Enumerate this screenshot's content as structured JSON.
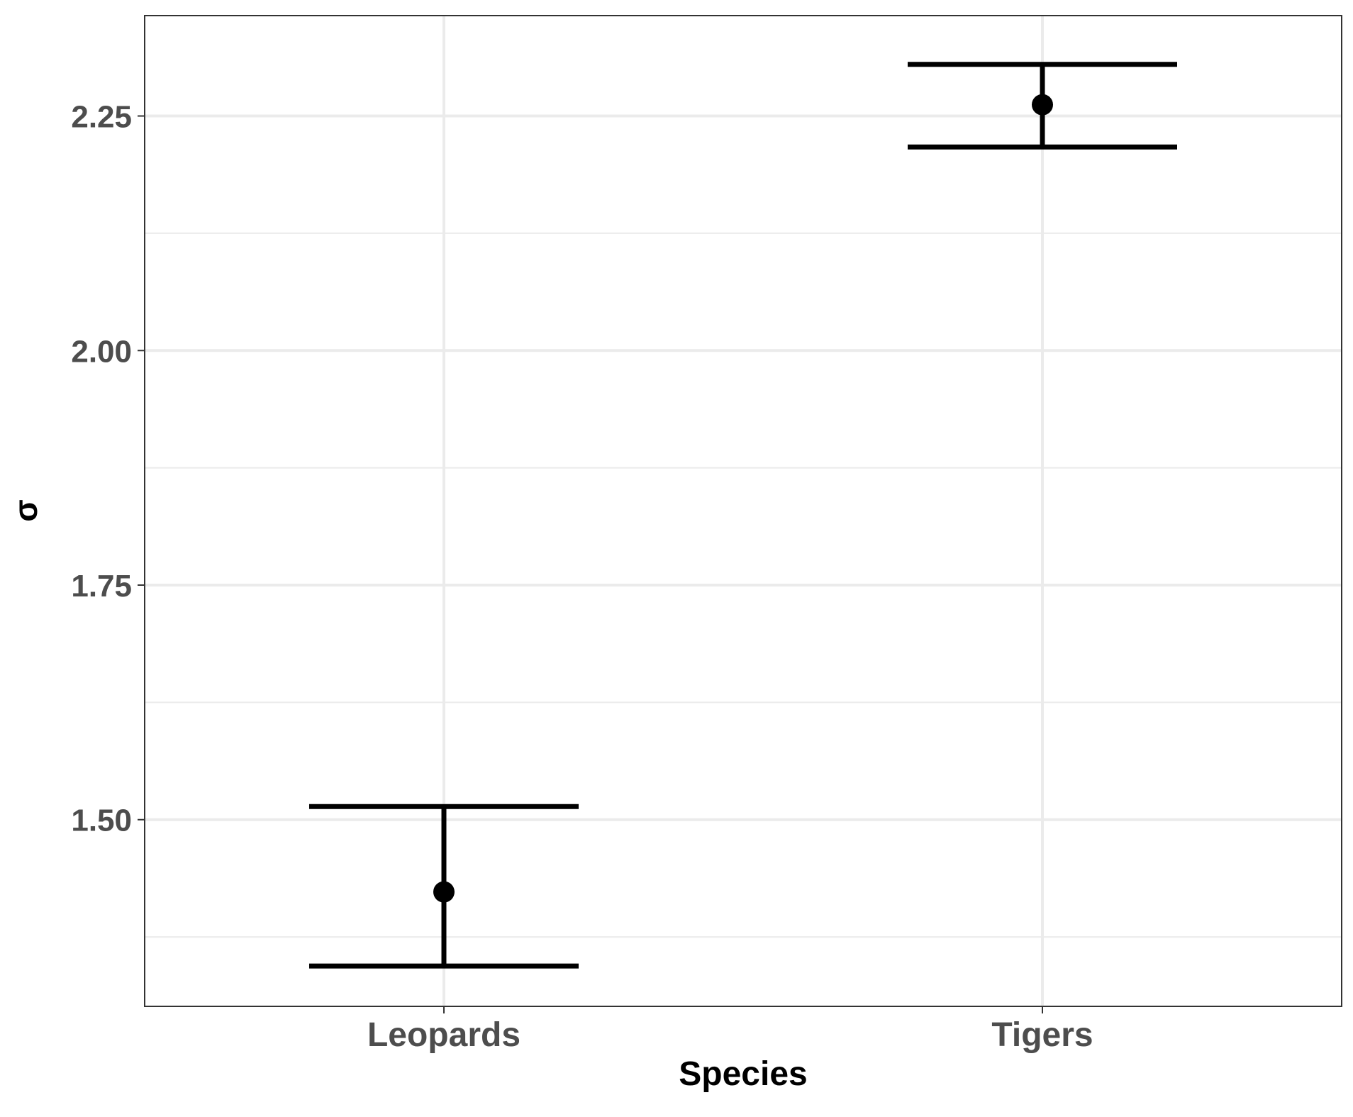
{
  "chart_data": {
    "type": "scatter",
    "title": "",
    "xlabel": "Species",
    "ylabel": "σ",
    "categories": [
      "Leopards",
      "Tigers"
    ],
    "points": [
      {
        "category": "Leopards",
        "estimate": 1.423,
        "lower": 1.344,
        "upper": 1.514
      },
      {
        "category": "Tigers",
        "estimate": 2.262,
        "lower": 2.217,
        "upper": 2.305
      }
    ],
    "y_ticks": [
      "1.50",
      "1.75",
      "2.00",
      "2.25"
    ],
    "y_tick_values": [
      1.5,
      1.75,
      2.0,
      2.25
    ],
    "y_minor_values": [
      1.375,
      1.625,
      1.875,
      2.125
    ],
    "ylim": [
      1.301,
      2.357
    ],
    "grid": true,
    "legend": "none",
    "colors": {
      "marks": "#000000",
      "grid": "#ebebeb",
      "panel_border": "#333333",
      "tick_text": "#4d4d4d",
      "background": "#ffffff"
    }
  }
}
